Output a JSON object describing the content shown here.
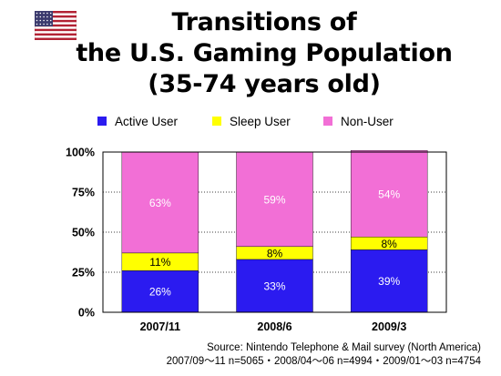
{
  "title_lines": [
    "Transitions of",
    "the U.S. Gaming Population",
    "(35-74 years old)"
  ],
  "source_lines": [
    "Source: Nintendo Telephone & Mail survey (North America)",
    "2007/09〜11 n=5065・2008/04〜06 n=4994・2009/01〜03 n=4754"
  ],
  "flag": {
    "icon": "us-flag-icon"
  },
  "colors": {
    "active": "#2b1bf0",
    "sleep": "#ffff00",
    "non": "#f26fd6",
    "border": "#000000",
    "grid": "#000000"
  },
  "chart_data": {
    "type": "bar",
    "stacked": true,
    "categories": [
      "2007/11",
      "2008/6",
      "2009/3"
    ],
    "series": [
      {
        "name": "Active User",
        "values": [
          26,
          33,
          39
        ],
        "labels": [
          "26%",
          "33%",
          "39%"
        ]
      },
      {
        "name": "Sleep User",
        "values": [
          11,
          8,
          8
        ],
        "labels": [
          "11%",
          "8%",
          "8%"
        ]
      },
      {
        "name": "Non-User",
        "values": [
          63,
          59,
          54
        ],
        "labels": [
          "63%",
          "59%",
          "54%"
        ]
      }
    ],
    "yticks": [
      "0%",
      "25%",
      "50%",
      "75%",
      "100%"
    ],
    "ylim": [
      0,
      100
    ],
    "legend_position": "top",
    "grid": true
  }
}
